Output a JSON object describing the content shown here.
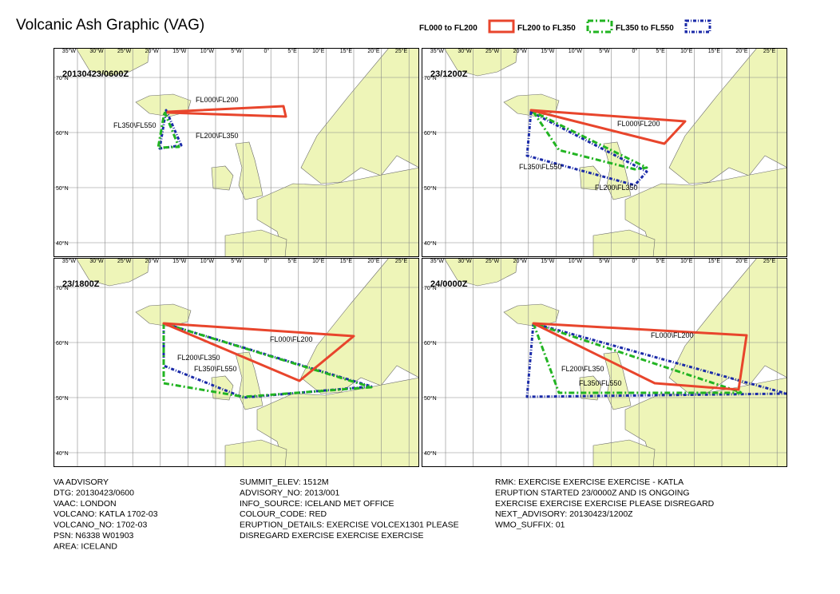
{
  "title": "Volcanic Ash Graphic (VAG)",
  "legend": [
    {
      "label": "FL000 to FL200",
      "color": "#e8452c"
    },
    {
      "label": "FL200 to FL350",
      "color": "#22b422"
    },
    {
      "label": "FL350 to FL550",
      "color": "#1a2aa8"
    }
  ],
  "longitude_labels": [
    "35°W",
    "30°W",
    "25°W",
    "20°W",
    "15°W",
    "10°W",
    "5°W",
    "0°",
    "5°E",
    "10°E",
    "15°E",
    "20°E",
    "25°E"
  ],
  "latitude_labels": [
    "70°N",
    "60°N",
    "50°N",
    "40°N"
  ],
  "panels": [
    {
      "label": "20130423/0600Z",
      "polygon_labels": [
        "FL000\\FL200",
        "FL350\\FL550",
        "FL200\\FL350"
      ]
    },
    {
      "label": "23/1200Z",
      "polygon_labels": [
        "FL000\\FL200",
        "FL350\\FL550",
        "FL200\\FL350"
      ]
    },
    {
      "label": "23/1800Z",
      "polygon_labels": [
        "FL000\\FL200",
        "FL200\\FL350",
        "FL350\\FL550"
      ]
    },
    {
      "label": "24/0000Z",
      "polygon_labels": [
        "FL000\\FL200",
        "FL200\\FL350",
        "FL350\\FL550"
      ]
    }
  ],
  "advisory": {
    "columns": [
      [
        "VA ADVISORY",
        "DTG: 20130423/0600",
        "VAAC: LONDON",
        "VOLCANO: KATLA 1702-03",
        "VOLCANO_NO: 1702-03",
        "PSN: N6338 W01903",
        "AREA: ICELAND"
      ],
      [
        "SUMMIT_ELEV: 1512M",
        "ADVISORY_NO: 2013/001",
        "INFO_SOURCE: ICELAND MET OFFICE",
        "COLOUR_CODE: RED",
        "ERUPTION_DETAILS: EXERCISE VOLCEX1301 PLEASE",
        "DISREGARD EXERCISE EXERCISE EXERCISE"
      ],
      [
        "RMK: EXERCISE EXERCISE EXERCISE - KATLA",
        "ERUPTION STARTED 23/0000Z AND IS ONGOING",
        "EXERCISE EXERCISE EXERCISE PLEASE DISREGARD",
        "NEXT_ADVISORY: 20130423/1200Z",
        "WMO_SUFFIX: 01"
      ]
    ]
  }
}
